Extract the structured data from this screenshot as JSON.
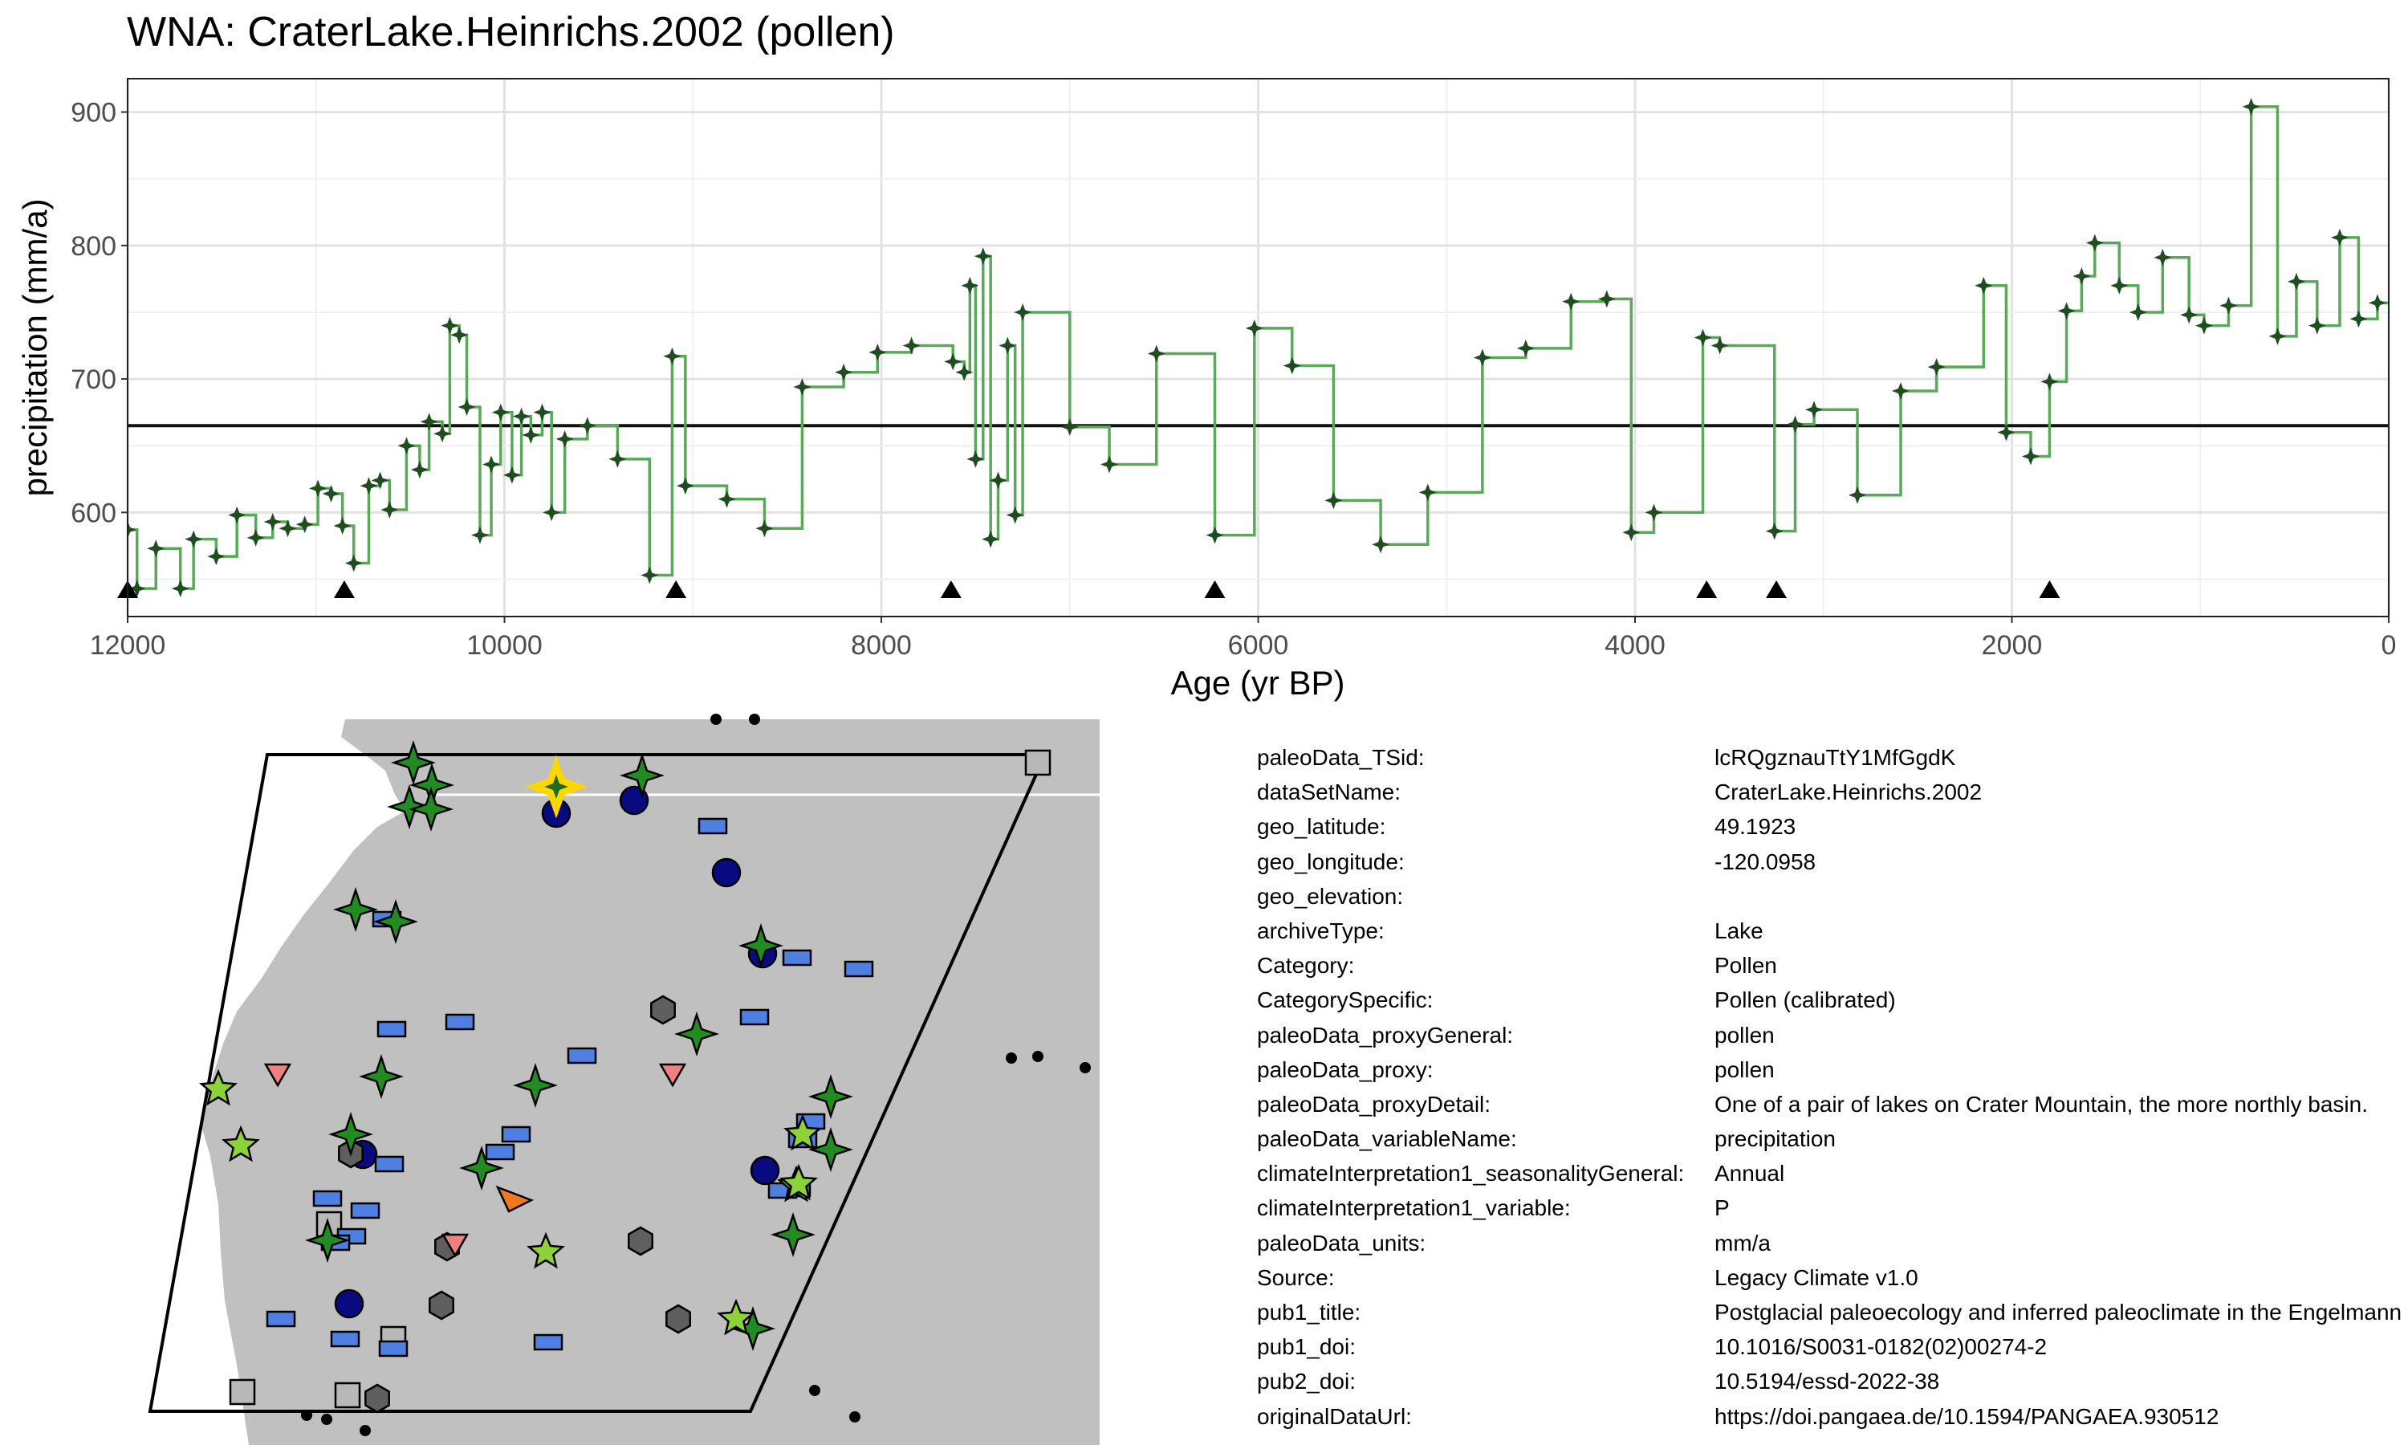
{
  "title": "WNA: CraterLake.Heinrichs.2002 (pollen)",
  "chart_data": {
    "type": "line",
    "step": true,
    "xlabel": "Age (yr BP)",
    "ylabel": "precipitation (mm/a)",
    "xlim": [
      12000,
      0
    ],
    "x_reversed": true,
    "ylim": [
      522,
      925
    ],
    "xticks": [
      12000,
      10000,
      8000,
      6000,
      4000,
      2000,
      0
    ],
    "yticks": [
      600,
      700,
      800,
      900
    ],
    "grid": true,
    "mean_line": 665,
    "series": [
      {
        "x": [
          12000,
          11950,
          11850,
          11720,
          11650,
          11530,
          11420,
          11320,
          11230,
          11150,
          11060,
          10990,
          10920,
          10860,
          10800,
          10720,
          10660,
          10610,
          10520,
          10450,
          10400,
          10330,
          10290,
          10240,
          10200,
          10130,
          10070,
          10020,
          9960,
          9910,
          9860,
          9800,
          9750,
          9680,
          9560,
          9400,
          9230,
          9110,
          9040,
          8820,
          8620,
          8420,
          8200,
          8020,
          7840,
          7620,
          7560,
          7530,
          7500,
          7460,
          7420,
          7380,
          7330,
          7290,
          7250,
          7000,
          6790,
          6540,
          6230,
          6020,
          5820,
          5600,
          5350,
          5100,
          4810,
          4580,
          4340,
          4150,
          4020,
          3900,
          3640,
          3550,
          3260,
          3150,
          3050,
          2820,
          2590,
          2400,
          2150,
          2030,
          1900,
          1800,
          1710,
          1630,
          1560,
          1430,
          1330,
          1200,
          1060,
          980,
          850,
          730,
          590,
          490,
          380,
          260,
          160,
          60
        ],
        "values": [
          587,
          543,
          573,
          543,
          580,
          567,
          598,
          581,
          593,
          588,
          591,
          618,
          614,
          590,
          562,
          620,
          624,
          602,
          650,
          632,
          668,
          659,
          740,
          733,
          679,
          583,
          636,
          675,
          628,
          672,
          658,
          675,
          600,
          655,
          665,
          640,
          553,
          717,
          620,
          610,
          588,
          694,
          705,
          720,
          725,
          713,
          705,
          770,
          640,
          792,
          580,
          624,
          725,
          598,
          750,
          664,
          636,
          719,
          583,
          738,
          710,
          609,
          576,
          615,
          716,
          723,
          758,
          760,
          585,
          600,
          731,
          725,
          586,
          666,
          677,
          613,
          691,
          709,
          770,
          660,
          642,
          698,
          751,
          777,
          802,
          770,
          750,
          791,
          748,
          740,
          755,
          904,
          732,
          773,
          740,
          806,
          745,
          757
        ]
      }
    ],
    "markers": [
      12000,
      10850,
      9090,
      7630,
      6230,
      3620,
      3250,
      1800
    ]
  },
  "map": {
    "colors": {
      "land": "#c0c0c0",
      "ocean": "#ffffff",
      "lake_star": "#228b22",
      "light_star": "#8ed23b",
      "blue_rect": "#4f7fe0",
      "navy_circle": "#0a0a80",
      "hexagon": "#5f5f5f",
      "pink_triangle": "#ee8080",
      "highlight": "#ffd700",
      "square": "#b8b8b8"
    }
  },
  "metadata": [
    {
      "key": "paleoData_TSid:",
      "value": "lcRQgznauTtY1MfGgdK"
    },
    {
      "key": "dataSetName:",
      "value": "CraterLake.Heinrichs.2002"
    },
    {
      "key": "geo_latitude:",
      "value": "49.1923"
    },
    {
      "key": "geo_longitude:",
      "value": "-120.0958"
    },
    {
      "key": "geo_elevation:",
      "value": ""
    },
    {
      "key": "archiveType:",
      "value": "Lake"
    },
    {
      "key": "Category:",
      "value": "Pollen"
    },
    {
      "key": "CategorySpecific:",
      "value": "Pollen (calibrated)"
    },
    {
      "key": "paleoData_proxyGeneral:",
      "value": "pollen"
    },
    {
      "key": "paleoData_proxy:",
      "value": "pollen"
    },
    {
      "key": "paleoData_proxyDetail:",
      "value": "One of a pair of lakes on Crater Mountain, the more northly basin."
    },
    {
      "key": "paleoData_variableName:",
      "value": "precipitation"
    },
    {
      "key": "climateInterpretation1_seasonalityGeneral:",
      "value": "Annual"
    },
    {
      "key": "climateInterpretation1_variable:",
      "value": "P"
    },
    {
      "key": "paleoData_units:",
      "value": "mm/a"
    },
    {
      "key": "Source:",
      "value": "Legacy Climate v1.0"
    },
    {
      "key": "pub1_title:",
      "value": "Postglacial paleoecology and inferred paleoclimate in the Engelmann"
    },
    {
      "key": "pub1_doi:",
      "value": "10.1016/S0031-0182(02)00274-2"
    },
    {
      "key": "pub2_doi:",
      "value": "10.5194/essd-2022-38"
    },
    {
      "key": "originalDataUrl:",
      "value": "https://doi.pangaea.de/10.1594/PANGAEA.930512"
    }
  ]
}
